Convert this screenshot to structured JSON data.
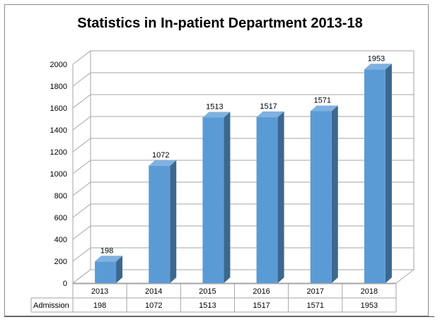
{
  "chart_data": {
    "type": "bar",
    "title": "Statistics in In-patient Department 2013-18",
    "categories": [
      "2013",
      "2014",
      "2015",
      "2016",
      "2017",
      "2018"
    ],
    "series": [
      {
        "name": "Admission",
        "values": [
          198,
          1072,
          1513,
          1517,
          1571,
          1953
        ]
      }
    ],
    "ylim": [
      0,
      2000
    ],
    "yticks": [
      0,
      200,
      400,
      600,
      800,
      1000,
      1200,
      1400,
      1600,
      1800,
      2000
    ],
    "grid": true,
    "style": "3d-column",
    "data_table": true,
    "colors": {
      "bar_front": "#5b9bd5",
      "bar_side": "#3b6890",
      "bar_top": "#7fb1e0",
      "grid": "#a6a6a6",
      "table_border": "#a6a6a6"
    }
  }
}
